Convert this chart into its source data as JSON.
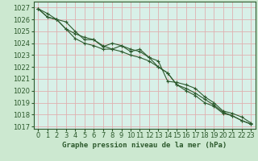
{
  "bg_color": "#cce8d0",
  "plot_bg_color": "#d8f0e8",
  "grid_color": "#e0b0b0",
  "line_color": "#2d5a2d",
  "xlabel": "Graphe pression niveau de la mer (hPa)",
  "xlim": [
    -0.5,
    23.5
  ],
  "ylim": [
    1016.8,
    1027.5
  ],
  "yticks": [
    1017,
    1018,
    1019,
    1020,
    1021,
    1022,
    1023,
    1024,
    1025,
    1026,
    1027
  ],
  "xticks": [
    0,
    1,
    2,
    3,
    4,
    5,
    6,
    7,
    8,
    9,
    10,
    11,
    12,
    13,
    14,
    15,
    16,
    17,
    18,
    19,
    20,
    21,
    22,
    23
  ],
  "series1": [
    1026.9,
    1026.5,
    1026.0,
    1025.8,
    1025.0,
    1024.3,
    1024.3,
    1023.8,
    1023.5,
    1023.8,
    1023.3,
    1023.5,
    1022.8,
    1022.5,
    1020.8,
    1020.7,
    1020.5,
    1020.2,
    1019.5,
    1019.0,
    1018.3,
    1018.1,
    1017.8,
    1017.3
  ],
  "series2": [
    1026.9,
    1026.2,
    1026.0,
    1025.2,
    1024.8,
    1024.5,
    1024.3,
    1023.7,
    1024.0,
    1023.8,
    1023.5,
    1023.3,
    1022.8,
    1022.0,
    1021.5,
    1020.5,
    1020.2,
    1019.8,
    1019.3,
    1018.8,
    1018.2,
    1017.9,
    1017.5,
    1017.2
  ],
  "series3": [
    1026.9,
    1026.2,
    1026.0,
    1025.2,
    1024.4,
    1024.0,
    1023.8,
    1023.5,
    1023.5,
    1023.3,
    1023.0,
    1022.8,
    1022.5,
    1022.0,
    1021.5,
    1020.5,
    1020.0,
    1019.6,
    1019.0,
    1018.7,
    1018.1,
    1017.9,
    1017.5,
    1017.2
  ],
  "tick_fontsize": 6,
  "xlabel_fontsize": 6.5
}
